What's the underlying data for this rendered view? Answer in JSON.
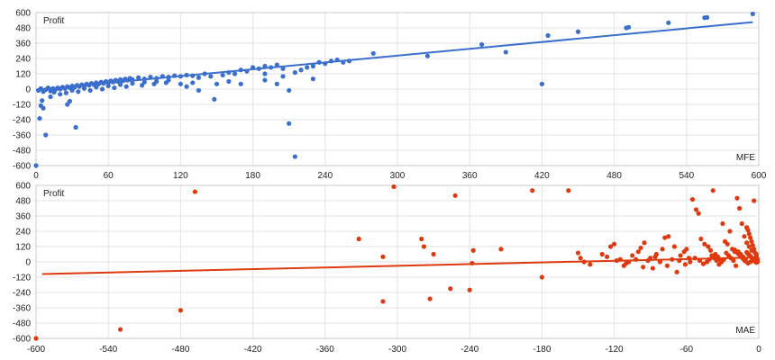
{
  "chart_data": [
    {
      "type": "scatter",
      "series_label": "Profit",
      "x_axis_label": "MFE",
      "xlim": [
        0,
        600
      ],
      "ylim": [
        -600,
        600
      ],
      "x_ticks": [
        0,
        60,
        120,
        180,
        240,
        300,
        360,
        420,
        480,
        540,
        600
      ],
      "y_ticks": [
        -600,
        -480,
        -360,
        -240,
        -120,
        0,
        120,
        240,
        360,
        480,
        600
      ],
      "grid": true,
      "color": "#3a6fcd",
      "trendline": [
        [
          0,
          -5
        ],
        [
          595,
          525
        ]
      ],
      "points": [
        [
          0,
          -600
        ],
        [
          3,
          -230
        ],
        [
          4,
          -130
        ],
        [
          6,
          -150
        ],
        [
          5,
          -90
        ],
        [
          8,
          -360
        ],
        [
          12,
          -60
        ],
        [
          28,
          -95
        ],
        [
          33,
          -300
        ],
        [
          26,
          -120
        ],
        [
          2,
          -10
        ],
        [
          4,
          5
        ],
        [
          6,
          -20
        ],
        [
          8,
          -5
        ],
        [
          10,
          10
        ],
        [
          12,
          -15
        ],
        [
          14,
          5
        ],
        [
          16,
          -5
        ],
        [
          18,
          10
        ],
        [
          20,
          0
        ],
        [
          22,
          15
        ],
        [
          24,
          5
        ],
        [
          26,
          20
        ],
        [
          28,
          10
        ],
        [
          30,
          25
        ],
        [
          32,
          15
        ],
        [
          34,
          30
        ],
        [
          36,
          20
        ],
        [
          38,
          35
        ],
        [
          40,
          25
        ],
        [
          42,
          40
        ],
        [
          44,
          30
        ],
        [
          46,
          45
        ],
        [
          48,
          35
        ],
        [
          50,
          50
        ],
        [
          52,
          40
        ],
        [
          54,
          55
        ],
        [
          56,
          45
        ],
        [
          58,
          60
        ],
        [
          60,
          50
        ],
        [
          62,
          65
        ],
        [
          64,
          55
        ],
        [
          66,
          70
        ],
        [
          68,
          60
        ],
        [
          70,
          75
        ],
        [
          72,
          65
        ],
        [
          74,
          80
        ],
        [
          76,
          70
        ],
        [
          78,
          85
        ],
        [
          80,
          75
        ],
        [
          85,
          90
        ],
        [
          90,
          80
        ],
        [
          95,
          95
        ],
        [
          100,
          85
        ],
        [
          105,
          100
        ],
        [
          110,
          95
        ],
        [
          115,
          105
        ],
        [
          120,
          100
        ],
        [
          125,
          110
        ],
        [
          130,
          105
        ],
        [
          20,
          -40
        ],
        [
          25,
          -30
        ],
        [
          35,
          -20
        ],
        [
          45,
          -10
        ],
        [
          55,
          0
        ],
        [
          65,
          10
        ],
        [
          75,
          20
        ],
        [
          88,
          30
        ],
        [
          98,
          40
        ],
        [
          108,
          50
        ],
        [
          15,
          -25
        ],
        [
          30,
          -10
        ],
        [
          40,
          5
        ],
        [
          50,
          15
        ],
        [
          60,
          25
        ],
        [
          70,
          35
        ],
        [
          80,
          45
        ],
        [
          90,
          55
        ],
        [
          100,
          60
        ],
        [
          110,
          70
        ],
        [
          135,
          90
        ],
        [
          140,
          120
        ],
        [
          145,
          100
        ],
        [
          150,
          40
        ],
        [
          155,
          110
        ],
        [
          160,
          130
        ],
        [
          165,
          120
        ],
        [
          170,
          150
        ],
        [
          175,
          140
        ],
        [
          180,
          170
        ],
        [
          185,
          160
        ],
        [
          190,
          180
        ],
        [
          195,
          170
        ],
        [
          200,
          190
        ],
        [
          205,
          160
        ],
        [
          210,
          -10
        ],
        [
          215,
          130
        ],
        [
          220,
          150
        ],
        [
          225,
          170
        ],
        [
          230,
          180
        ],
        [
          235,
          210
        ],
        [
          240,
          200
        ],
        [
          245,
          220
        ],
        [
          250,
          230
        ],
        [
          255,
          210
        ],
        [
          260,
          220
        ],
        [
          210,
          -270
        ],
        [
          215,
          -530
        ],
        [
          190,
          70
        ],
        [
          230,
          80
        ],
        [
          160,
          60
        ],
        [
          170,
          40
        ],
        [
          120,
          40
        ],
        [
          125,
          20
        ],
        [
          135,
          -10
        ],
        [
          148,
          -80
        ],
        [
          130,
          50
        ],
        [
          200,
          40
        ],
        [
          205,
          100
        ],
        [
          190,
          120
        ],
        [
          280,
          280
        ],
        [
          325,
          260
        ],
        [
          370,
          350
        ],
        [
          390,
          290
        ],
        [
          420,
          40
        ],
        [
          425,
          420
        ],
        [
          450,
          450
        ],
        [
          490,
          480
        ],
        [
          492,
          485
        ],
        [
          525,
          520
        ],
        [
          555,
          560
        ],
        [
          557,
          562
        ],
        [
          595,
          590
        ]
      ]
    },
    {
      "type": "scatter",
      "series_label": "Profit",
      "x_axis_label": "MAE",
      "xlim": [
        -600,
        0
      ],
      "ylim": [
        -600,
        600
      ],
      "x_ticks": [
        -600,
        -540,
        -480,
        -420,
        -360,
        -300,
        -240,
        -180,
        -120,
        -60,
        0
      ],
      "y_ticks": [
        -600,
        -480,
        -360,
        -240,
        -120,
        0,
        120,
        240,
        360,
        480,
        600
      ],
      "grid": true,
      "color": "#de3a0f",
      "trendline": [
        [
          -595,
          -95
        ],
        [
          0,
          35
        ]
      ],
      "points": [
        [
          -600,
          -600
        ],
        [
          -530,
          -530
        ],
        [
          -480,
          -380
        ],
        [
          -468,
          550
        ],
        [
          -332,
          180
        ],
        [
          -312,
          40
        ],
        [
          -312,
          -310
        ],
        [
          -303,
          590
        ],
        [
          -280,
          180
        ],
        [
          -278,
          120
        ],
        [
          -273,
          -290
        ],
        [
          -270,
          60
        ],
        [
          -256,
          -210
        ],
        [
          -252,
          520
        ],
        [
          -240,
          -220
        ],
        [
          -238,
          -10
        ],
        [
          -237,
          90
        ],
        [
          -214,
          100
        ],
        [
          -188,
          560
        ],
        [
          -180,
          -120
        ],
        [
          -158,
          560
        ],
        [
          -150,
          70
        ],
        [
          -148,
          30
        ],
        [
          -145,
          0
        ],
        [
          -140,
          -20
        ],
        [
          -130,
          60
        ],
        [
          -126,
          40
        ],
        [
          -123,
          120
        ],
        [
          -120,
          140
        ],
        [
          -115,
          20
        ],
        [
          -110,
          -10
        ],
        [
          -105,
          50
        ],
        [
          -100,
          80
        ],
        [
          -98,
          110
        ],
        [
          -95,
          150
        ],
        [
          -90,
          30
        ],
        [
          -88,
          -50
        ],
        [
          -85,
          60
        ],
        [
          -80,
          100
        ],
        [
          -78,
          190
        ],
        [
          -75,
          200
        ],
        [
          -70,
          120
        ],
        [
          -68,
          -80
        ],
        [
          -65,
          50
        ],
        [
          -62,
          80
        ],
        [
          -60,
          100
        ],
        [
          -58,
          30
        ],
        [
          -55,
          490
        ],
        [
          -52,
          410
        ],
        [
          -50,
          380
        ],
        [
          -48,
          180
        ],
        [
          -45,
          140
        ],
        [
          -42,
          120
        ],
        [
          -40,
          90
        ],
        [
          -38,
          560
        ],
        [
          -36,
          60
        ],
        [
          -34,
          40
        ],
        [
          -32,
          20
        ],
        [
          -30,
          300
        ],
        [
          -28,
          160
        ],
        [
          -26,
          140
        ],
        [
          -24,
          240
        ],
        [
          -22,
          100
        ],
        [
          -20,
          80
        ],
        [
          -18,
          500
        ],
        [
          -16,
          420
        ],
        [
          -14,
          300
        ],
        [
          -12,
          200
        ],
        [
          -10,
          150
        ],
        [
          -8,
          120
        ],
        [
          -6,
          90
        ],
        [
          -4,
          480
        ],
        [
          -2,
          60
        ],
        [
          -3,
          30
        ],
        [
          -5,
          10
        ],
        [
          -7,
          0
        ],
        [
          -9,
          -10
        ],
        [
          -11,
          20
        ],
        [
          -13,
          40
        ],
        [
          -15,
          60
        ],
        [
          -17,
          80
        ],
        [
          -19,
          -30
        ],
        [
          -21,
          10
        ],
        [
          -23,
          30
        ],
        [
          -25,
          50
        ],
        [
          -27,
          70
        ],
        [
          -29,
          20
        ],
        [
          -31,
          0
        ],
        [
          -33,
          -20
        ],
        [
          -35,
          10
        ],
        [
          -37,
          30
        ],
        [
          -39,
          50
        ],
        [
          -41,
          20
        ],
        [
          -43,
          0
        ],
        [
          -46,
          -15
        ],
        [
          -49,
          10
        ],
        [
          -53,
          30
        ],
        [
          -57,
          0
        ],
        [
          -61,
          -20
        ],
        [
          -66,
          10
        ],
        [
          -72,
          20
        ],
        [
          -76,
          -30
        ],
        [
          -82,
          0
        ],
        [
          -86,
          40
        ],
        [
          -92,
          10
        ],
        [
          -96,
          -40
        ],
        [
          -102,
          20
        ],
        [
          -108,
          0
        ],
        [
          -112,
          -30
        ],
        [
          -118,
          10
        ],
        [
          -1,
          20
        ],
        [
          -2,
          40
        ],
        [
          -3,
          70
        ],
        [
          -4,
          100
        ],
        [
          -5,
          130
        ],
        [
          -6,
          160
        ],
        [
          -7,
          190
        ],
        [
          -8,
          220
        ],
        [
          -9,
          250
        ],
        [
          -10,
          270
        ],
        [
          -1,
          0
        ],
        [
          -2,
          -5
        ],
        [
          -3,
          5
        ],
        [
          -4,
          15
        ],
        [
          -5,
          25
        ],
        [
          -6,
          35
        ],
        [
          -7,
          45
        ],
        [
          -8,
          55
        ],
        [
          -9,
          65
        ],
        [
          -10,
          75
        ],
        [
          -11,
          5
        ],
        [
          -12,
          15
        ],
        [
          -13,
          25
        ],
        [
          -14,
          35
        ],
        [
          -15,
          45
        ],
        [
          -16,
          55
        ],
        [
          -17,
          65
        ],
        [
          -18,
          75
        ],
        [
          -19,
          85
        ],
        [
          -20,
          95
        ]
      ]
    }
  ]
}
